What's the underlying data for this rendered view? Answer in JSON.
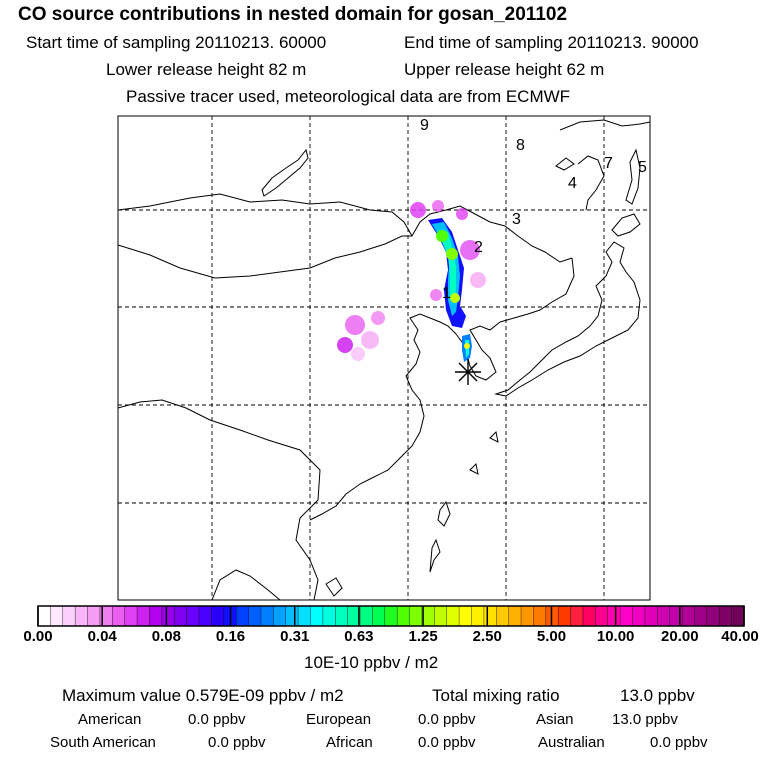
{
  "header": {
    "title": "CO  source contributions in nested domain for gosan_201102",
    "start_label": "Start time of sampling 20110213. 60000",
    "end_label": "End time of sampling 20110213. 90000",
    "lower_label": "Lower release height   82 m",
    "upper_label": "Upper release height   62 m",
    "note": "Passive tracer used, meteorological data are from ECMWF"
  },
  "chart_data": {
    "type": "heatmap",
    "description_units": "10E-10 ppbv / m2",
    "colorbar_ticks": [
      "0.00",
      "0.04",
      "0.08",
      "0.16",
      "0.31",
      "0.63",
      "1.25",
      "2.50",
      "5.00",
      "10.00",
      "20.00",
      "40.00"
    ],
    "colorbar_colors": [
      "#ffffff",
      "#fde8fd",
      "#fbd0fb",
      "#f8b6f8",
      "#f49cf4",
      "#ef7ff0",
      "#ea5ef0",
      "#e040f4",
      "#cc22f2",
      "#b300ee",
      "#9a00ee",
      "#8000f0",
      "#6a00ff",
      "#4c00ff",
      "#2a00ff",
      "#1010ff",
      "#0040ff",
      "#0060ff",
      "#0080ff",
      "#00a0ff",
      "#00bfff",
      "#00dfff",
      "#00ffff",
      "#00ffe0",
      "#00ffc0",
      "#00ffa0",
      "#00ff80",
      "#00ff50",
      "#20ff20",
      "#50ff00",
      "#80ff00",
      "#a0ff00",
      "#c0ff00",
      "#e0ff00",
      "#ffff00",
      "#fff000",
      "#ffe000",
      "#ffc800",
      "#ffb000",
      "#ff9800",
      "#ff7800",
      "#ff5a00",
      "#ff3a00",
      "#ff2040",
      "#ff0060",
      "#ff0090",
      "#ff00b0",
      "#ff00c8",
      "#f000c0",
      "#e000b8",
      "#d000b0",
      "#c000a8",
      "#b00098",
      "#a00088",
      "#900078",
      "#800068",
      "#700058"
    ],
    "region_labels": [
      "9",
      "8",
      "7",
      "5",
      "4",
      "3",
      "2",
      "1"
    ],
    "receptor": "Gosan",
    "grid": true
  },
  "stats": {
    "max_label": "Maximum value  0.579E-09 ppbv / m2",
    "total_label": "Total mixing ratio",
    "total_value": "13.0 ppbv",
    "american_label": "American",
    "american_value": "0.0 ppbv",
    "european_label": "European",
    "european_value": "0.0 ppbv",
    "asian_label": "Asian",
    "asian_value": "13.0 ppbv",
    "south_american_label": "South American",
    "south_american_value": "0.0 ppbv",
    "african_label": "African",
    "african_value": "0.0 ppbv",
    "australian_label": "Australian",
    "australian_value": "0.0 ppbv"
  }
}
